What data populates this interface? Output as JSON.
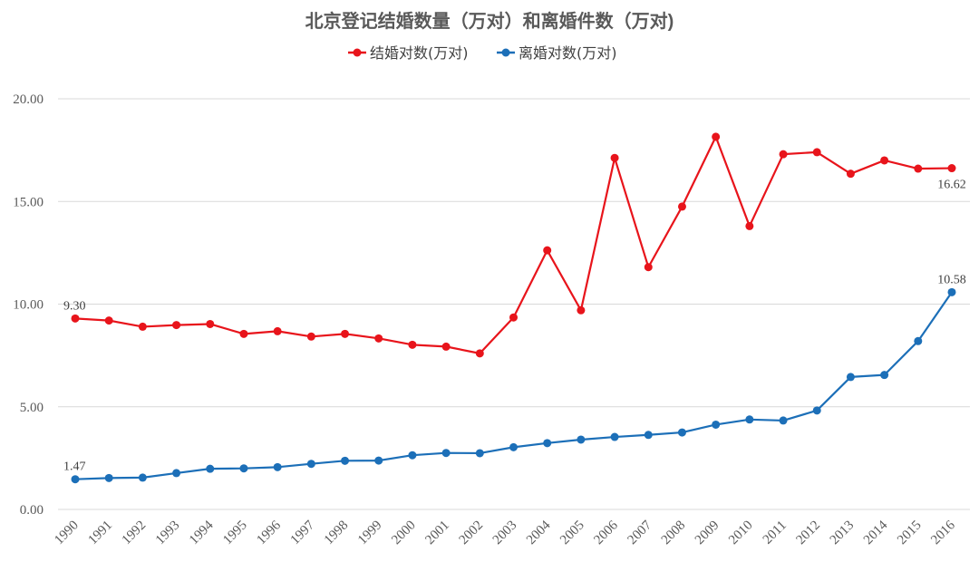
{
  "chart_data": {
    "type": "line",
    "title": "北京登记结婚数量（万对）和离婚件数（万对)",
    "xlabel": "",
    "ylabel": "",
    "x": [
      "1990",
      "1991",
      "1992",
      "1993",
      "1994",
      "1995",
      "1996",
      "1997",
      "1998",
      "1999",
      "2000",
      "2001",
      "2002",
      "2003",
      "2004",
      "2005",
      "2006",
      "2007",
      "2008",
      "2009",
      "2010",
      "2011",
      "2012",
      "2013",
      "2014",
      "2015",
      "2016"
    ],
    "ylim": [
      0,
      20
    ],
    "yticks": [
      "0.00",
      "5.00",
      "10.00",
      "15.00",
      "20.00"
    ],
    "grid": true,
    "legend_position": "top-center",
    "series": [
      {
        "name": "结婚对数(万对)",
        "color": "#e8141b",
        "values": [
          9.3,
          9.2,
          8.9,
          8.98,
          9.03,
          8.55,
          8.68,
          8.42,
          8.55,
          8.33,
          8.02,
          7.93,
          7.6,
          9.35,
          12.62,
          9.7,
          17.12,
          11.8,
          14.75,
          18.15,
          13.8,
          17.3,
          17.4,
          16.35,
          17.0,
          16.6,
          16.62
        ],
        "labels": {
          "0": "9.30",
          "26": "16.62"
        }
      },
      {
        "name": "离婚对数(万对)",
        "color": "#1c6fb8",
        "values": [
          1.47,
          1.53,
          1.55,
          1.77,
          1.98,
          2.0,
          2.06,
          2.22,
          2.37,
          2.38,
          2.64,
          2.75,
          2.74,
          3.03,
          3.23,
          3.4,
          3.53,
          3.63,
          3.75,
          4.13,
          4.38,
          4.33,
          4.82,
          6.45,
          6.55,
          8.2,
          10.58
        ],
        "labels": {
          "0": "1.47",
          "26": "10.58"
        }
      }
    ]
  }
}
